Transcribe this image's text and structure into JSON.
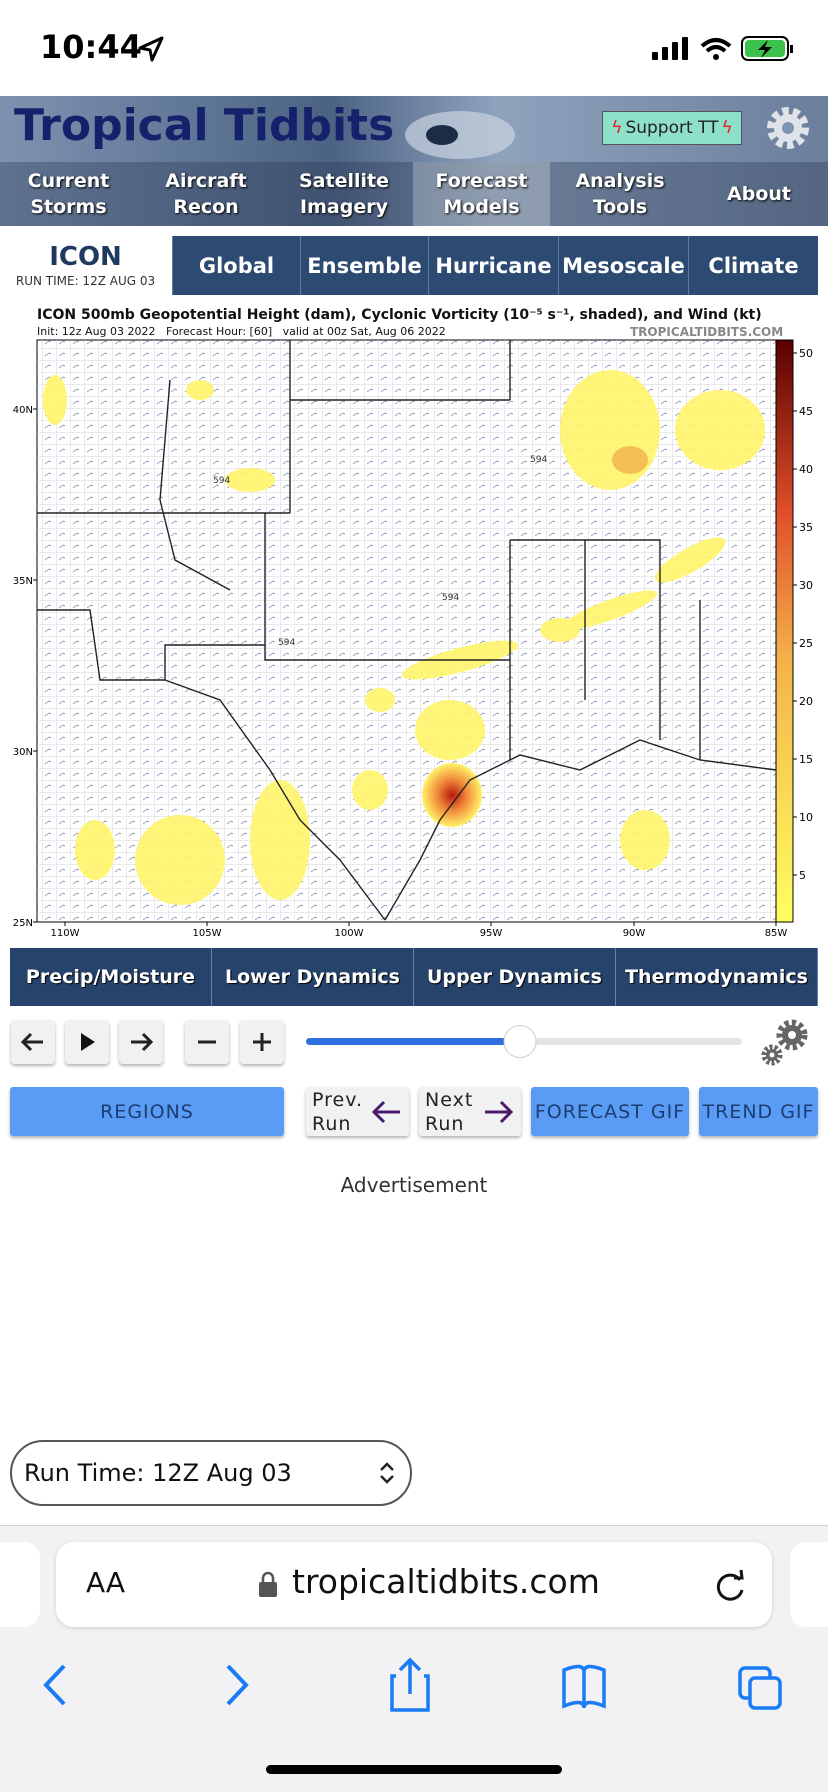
{
  "status_bar": {
    "time": "10:44"
  },
  "header": {
    "logo": "Tropical Tidbits",
    "support_button": "Support TT",
    "nav": [
      "Current Storms",
      "Aircraft Recon",
      "Satellite Imagery",
      "Forecast Models",
      "Analysis Tools",
      "About"
    ]
  },
  "model_bar": {
    "model": "ICON",
    "run_time": "RUN TIME: 12Z AUG 03",
    "tabs": [
      "Global",
      "Ensemble",
      "Hurricane",
      "Mesoscale",
      "Climate"
    ]
  },
  "map": {
    "title": "ICON 500mb Geopotential Height (dam), Cyclonic Vorticity (10⁻⁵ s⁻¹, shaded), and Wind (kt)",
    "subtitle": "Init: 12z Aug 03 2022   Forecast Hour: [60]   valid at 00z Sat, Aug 06 2022",
    "credit": "TROPICALTIDBITS.COM",
    "lat_labels": [
      "40N",
      "35N",
      "30N",
      "25N"
    ],
    "lon_labels": [
      "110W",
      "105W",
      "100W",
      "95W",
      "90W",
      "85W"
    ],
    "colorbar_ticks": [
      50,
      45,
      40,
      35,
      30,
      25,
      20,
      15,
      10,
      5
    ],
    "contour_labels": [
      "594",
      "594",
      "594",
      "594"
    ]
  },
  "categories": [
    "Precip/Moisture",
    "Lower Dynamics",
    "Upper Dynamics",
    "Thermodynamics"
  ],
  "buttons": {
    "regions": "REGIONS",
    "prev": "Prev. Run",
    "next": "Next Run",
    "forecast_gif": "FORECAST GIF",
    "trend_gif": "TREND GIF"
  },
  "ad": "Advertisement",
  "run_time_select": "Run Time: 12Z Aug 03",
  "browser": {
    "aa": "AA",
    "url": "tropicaltidbits.com"
  }
}
